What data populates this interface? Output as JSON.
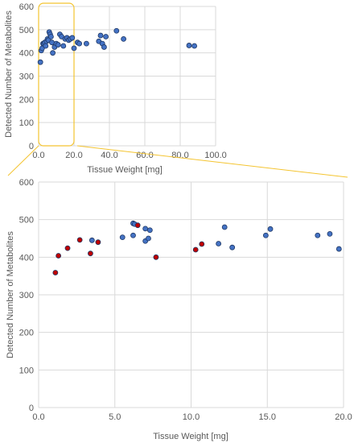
{
  "chart_data": [
    {
      "type": "scatter",
      "title": "",
      "xlabel": "Tissue Weight [mg]",
      "ylabel": "Detected Number of Metabolites",
      "xlim": [
        0,
        100
      ],
      "ylim": [
        0,
        600
      ],
      "x_ticks": [
        "0.0",
        "20.0",
        "40.0",
        "60.0",
        "80.0",
        "100.0"
      ],
      "y_ticks": [
        "0",
        "100",
        "200",
        "300",
        "400",
        "500",
        "600"
      ],
      "grid": true,
      "highlight_range_x": [
        0,
        20
      ],
      "series": [
        {
          "color": "#4472c4",
          "points": [
            [
              1,
              360
            ],
            [
              1.5,
              410
            ],
            [
              2,
              420
            ],
            [
              2.5,
              440
            ],
            [
              3,
              440
            ],
            [
              3.5,
              445
            ],
            [
              4,
              430
            ],
            [
              4.5,
              450
            ],
            [
              5,
              460
            ],
            [
              5.5,
              455
            ],
            [
              6,
              490
            ],
            [
              6.5,
              480
            ],
            [
              7,
              470
            ],
            [
              7.5,
              445
            ],
            [
              8,
              400
            ],
            [
              9,
              425
            ],
            [
              10,
              440
            ],
            [
              11,
              435
            ],
            [
              12,
              480
            ],
            [
              13,
              470
            ],
            [
              14,
              430
            ],
            [
              15,
              460
            ],
            [
              16,
              465
            ],
            [
              17,
              455
            ],
            [
              18,
              460
            ],
            [
              19,
              465
            ],
            [
              20,
              420
            ],
            [
              22,
              445
            ],
            [
              23,
              440
            ],
            [
              27,
              440
            ],
            [
              34,
              450
            ],
            [
              35,
              475
            ],
            [
              36,
              440
            ],
            [
              37,
              425
            ],
            [
              38,
              470
            ],
            [
              44,
              495
            ],
            [
              48,
              460
            ],
            [
              85,
              432
            ],
            [
              88,
              430
            ]
          ]
        }
      ]
    },
    {
      "type": "scatter",
      "title": "",
      "xlabel": "Tissue Weight [mg]",
      "ylabel": "Detected Number of Metabolites",
      "xlim": [
        0,
        20
      ],
      "ylim": [
        0,
        600
      ],
      "x_ticks": [
        "0.0",
        "5.0",
        "10.0",
        "15.0",
        "20.0"
      ],
      "y_ticks": [
        "0",
        "100",
        "200",
        "300",
        "400",
        "500",
        "600"
      ],
      "grid": true,
      "series": [
        {
          "color": "#4472c4",
          "points": [
            [
              3.5,
              445
            ],
            [
              5.5,
              453
            ],
            [
              6.2,
              490
            ],
            [
              6.3,
              488
            ],
            [
              6.2,
              458
            ],
            [
              7.0,
              443
            ],
            [
              7.0,
              476
            ],
            [
              7.3,
              472
            ],
            [
              7.2,
              450
            ],
            [
              11.8,
              436
            ],
            [
              12.2,
              480
            ],
            [
              12.7,
              426
            ],
            [
              14.9,
              458
            ],
            [
              15.2,
              475
            ],
            [
              18.3,
              458
            ],
            [
              19.1,
              462
            ],
            [
              19.7,
              422
            ]
          ]
        },
        {
          "color": "#c00000",
          "points": [
            [
              1.1,
              359
            ],
            [
              1.3,
              404
            ],
            [
              1.9,
              424
            ],
            [
              2.7,
              446
            ],
            [
              3.4,
              410
            ],
            [
              3.9,
              440
            ],
            [
              6.5,
              485
            ],
            [
              7.7,
              400
            ],
            [
              10.3,
              420
            ],
            [
              10.7,
              435
            ]
          ]
        }
      ]
    }
  ]
}
